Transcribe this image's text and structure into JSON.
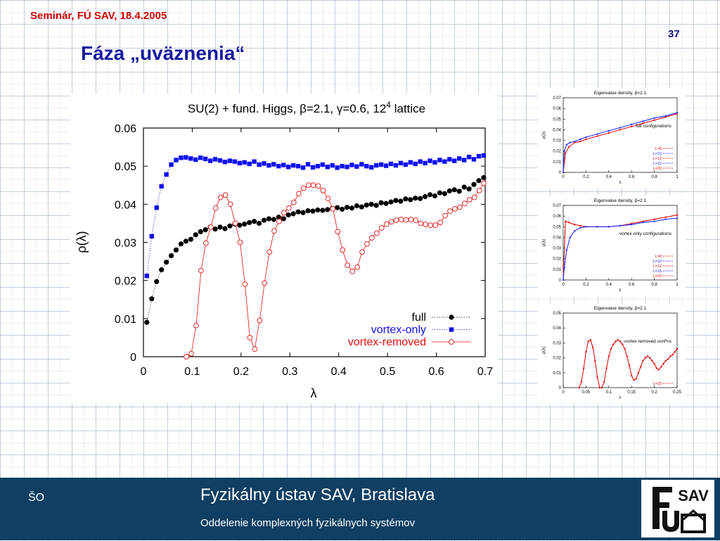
{
  "slide": {
    "header": "Seminár, FÚ SAV, 18.4.2005",
    "page_number": "37",
    "title": "Fáza „uväznenia“"
  },
  "footer": {
    "left": "ŠO",
    "institute": "Fyzikálny ústav SAV, Bratislava",
    "department": "Oddelenie komplexných fyzikálnych systémov",
    "logo_text": "SAV"
  },
  "chart_data": [
    {
      "type": "scatter",
      "title_parts": [
        "SU(2) + fund. Higgs, ",
        "β",
        "=2.1, ",
        "γ",
        "=0.6, 12",
        "4",
        " lattice"
      ],
      "xlabel": "λ",
      "ylabel": "ρ(λ)",
      "xlim": [
        0,
        0.7
      ],
      "ylim": [
        0,
        0.06
      ],
      "xticks": [
        "0",
        "0.1",
        "0.2",
        "0.3",
        "0.4",
        "0.5",
        "0.6",
        "0.7"
      ],
      "yticks": [
        "0",
        "0.01",
        "0.02",
        "0.03",
        "0.04",
        "0.05",
        "0.06"
      ],
      "legend_position": "bottom-right",
      "series": [
        {
          "name": "full",
          "color": "#000000",
          "marker": "filled-circle",
          "line": "dotted",
          "x": [
            0.007,
            0.017,
            0.027,
            0.037,
            0.047,
            0.057,
            0.067,
            0.077,
            0.087,
            0.097,
            0.107,
            0.117,
            0.127,
            0.137,
            0.147,
            0.157,
            0.167,
            0.177,
            0.187,
            0.197,
            0.207,
            0.217,
            0.227,
            0.237,
            0.247,
            0.257,
            0.267,
            0.277,
            0.287,
            0.297,
            0.307,
            0.317,
            0.327,
            0.337,
            0.347,
            0.357,
            0.367,
            0.377,
            0.387,
            0.397,
            0.407,
            0.417,
            0.427,
            0.437,
            0.447,
            0.457,
            0.467,
            0.477,
            0.487,
            0.497,
            0.507,
            0.517,
            0.527,
            0.537,
            0.547,
            0.557,
            0.567,
            0.577,
            0.587,
            0.597,
            0.607,
            0.617,
            0.627,
            0.637,
            0.647,
            0.657,
            0.667,
            0.677,
            0.687,
            0.697
          ],
          "y": [
            0.009,
            0.0152,
            0.0197,
            0.0228,
            0.0248,
            0.0265,
            0.028,
            0.0296,
            0.0303,
            0.0308,
            0.032,
            0.0328,
            0.0333,
            0.034,
            0.0335,
            0.034,
            0.0336,
            0.0343,
            0.0348,
            0.0345,
            0.0348,
            0.0352,
            0.0355,
            0.035,
            0.0358,
            0.0362,
            0.036,
            0.0366,
            0.0362,
            0.0372,
            0.0375,
            0.038,
            0.0378,
            0.0383,
            0.0382,
            0.0385,
            0.0384,
            0.0386,
            0.0389,
            0.0391,
            0.0387,
            0.0392,
            0.039,
            0.0396,
            0.0393,
            0.0398,
            0.04,
            0.0397,
            0.0404,
            0.0402,
            0.0406,
            0.041,
            0.0408,
            0.0414,
            0.0412,
            0.0416,
            0.0415,
            0.042,
            0.0425,
            0.0422,
            0.043,
            0.0428,
            0.0435,
            0.0438,
            0.0434,
            0.0445,
            0.044,
            0.0452,
            0.0462,
            0.047
          ]
        },
        {
          "name": "vortex-only",
          "color": "#1010ee",
          "marker": "filled-square",
          "line": "dotted",
          "x": [
            0.007,
            0.017,
            0.027,
            0.037,
            0.047,
            0.057,
            0.067,
            0.077,
            0.087,
            0.097,
            0.107,
            0.117,
            0.127,
            0.137,
            0.147,
            0.157,
            0.167,
            0.177,
            0.187,
            0.197,
            0.207,
            0.217,
            0.227,
            0.237,
            0.247,
            0.257,
            0.267,
            0.277,
            0.287,
            0.297,
            0.307,
            0.317,
            0.327,
            0.337,
            0.347,
            0.357,
            0.367,
            0.377,
            0.387,
            0.397,
            0.407,
            0.417,
            0.427,
            0.437,
            0.447,
            0.457,
            0.467,
            0.477,
            0.487,
            0.497,
            0.507,
            0.517,
            0.527,
            0.537,
            0.547,
            0.557,
            0.567,
            0.577,
            0.587,
            0.597,
            0.607,
            0.617,
            0.627,
            0.637,
            0.647,
            0.657,
            0.667,
            0.677,
            0.687,
            0.697
          ],
          "y": [
            0.0212,
            0.0316,
            0.0391,
            0.0447,
            0.0478,
            0.0504,
            0.0516,
            0.0522,
            0.0523,
            0.052,
            0.0517,
            0.0522,
            0.0519,
            0.0514,
            0.0518,
            0.0515,
            0.0511,
            0.0514,
            0.0512,
            0.0508,
            0.051,
            0.0506,
            0.0512,
            0.0504,
            0.0507,
            0.0502,
            0.0505,
            0.05,
            0.0503,
            0.0498,
            0.0502,
            0.05,
            0.0496,
            0.0505,
            0.0497,
            0.05,
            0.0504,
            0.0498,
            0.0502,
            0.0496,
            0.05,
            0.0498,
            0.0503,
            0.0499,
            0.0505,
            0.05,
            0.0497,
            0.0502,
            0.0504,
            0.0501,
            0.0506,
            0.0502,
            0.0508,
            0.0504,
            0.051,
            0.0506,
            0.0512,
            0.0508,
            0.0514,
            0.051,
            0.0516,
            0.0512,
            0.0518,
            0.0514,
            0.052,
            0.0516,
            0.0524,
            0.0518,
            0.0526,
            0.0528
          ]
        },
        {
          "name": "vortex-removed",
          "color": "#e01010",
          "marker": "open-circle",
          "line": "solid",
          "x": [
            0.088,
            0.098,
            0.108,
            0.118,
            0.128,
            0.138,
            0.148,
            0.158,
            0.168,
            0.178,
            0.188,
            0.198,
            0.208,
            0.218,
            0.228,
            0.238,
            0.248,
            0.258,
            0.268,
            0.278,
            0.288,
            0.298,
            0.308,
            0.318,
            0.328,
            0.338,
            0.348,
            0.358,
            0.368,
            0.378,
            0.388,
            0.398,
            0.408,
            0.418,
            0.428,
            0.438,
            0.448,
            0.458,
            0.468,
            0.478,
            0.488,
            0.498,
            0.508,
            0.518,
            0.528,
            0.538,
            0.548,
            0.558,
            0.568,
            0.578,
            0.588,
            0.598,
            0.608,
            0.618,
            0.628,
            0.638,
            0.648,
            0.658,
            0.668,
            0.678,
            0.688,
            0.697
          ],
          "y": [
            0.0,
            0.0008,
            0.0082,
            0.0226,
            0.0298,
            0.034,
            0.039,
            0.0418,
            0.0424,
            0.04,
            0.035,
            0.03,
            0.019,
            0.005,
            0.002,
            0.0095,
            0.0193,
            0.0275,
            0.033,
            0.0355,
            0.0378,
            0.039,
            0.0405,
            0.0428,
            0.0442,
            0.045,
            0.045,
            0.0448,
            0.0436,
            0.0415,
            0.0388,
            0.0328,
            0.028,
            0.024,
            0.0224,
            0.0235,
            0.0275,
            0.0296,
            0.0312,
            0.0324,
            0.0338,
            0.0348,
            0.0354,
            0.0358,
            0.036,
            0.0359,
            0.036,
            0.0358,
            0.035,
            0.0347,
            0.0345,
            0.0345,
            0.0352,
            0.037,
            0.0382,
            0.0388,
            0.0392,
            0.0402,
            0.0412,
            0.0418,
            0.0436,
            0.0455
          ]
        }
      ]
    },
    {
      "type": "scatter",
      "title": "Eigenvalue density, β=2.1",
      "xlabel": "λ",
      "ylabel": "ρ(λ)",
      "annotation": "full configurations",
      "xlim": [
        0,
        1
      ],
      "ylim": [
        0,
        0.07
      ],
      "xticks": [
        "0",
        "0.2",
        "0.4",
        "0.6",
        "0.8",
        "1"
      ],
      "yticks": [
        "0",
        "0.01",
        "0.02",
        "0.03",
        "0.04",
        "0.05",
        "0.06",
        "0.07"
      ],
      "legend_position": "bottom-right",
      "legend": [
        "L=8",
        "L=10",
        "L=12",
        "L=16",
        "L=20"
      ],
      "legend_colors": [
        "#e01010",
        "#2030ff",
        "#e01010",
        "#2030ff",
        "#e01010"
      ],
      "series": [
        {
          "name": "L=8",
          "color": "#e01010",
          "x": [
            0.0,
            0.02,
            0.05,
            0.1,
            0.15,
            0.2,
            0.3,
            0.4,
            0.5,
            0.6,
            0.7,
            0.8,
            0.9,
            1.0
          ],
          "y": [
            0.0,
            0.018,
            0.024,
            0.028,
            0.029,
            0.031,
            0.034,
            0.037,
            0.04,
            0.043,
            0.046,
            0.049,
            0.052,
            0.055
          ]
        },
        {
          "name": "L=20",
          "color": "#2030ff",
          "x": [
            0.0,
            0.01,
            0.03,
            0.06,
            0.1,
            0.15,
            0.2,
            0.3,
            0.4,
            0.5,
            0.6,
            0.7,
            0.8,
            0.9,
            1.0
          ],
          "y": [
            0.0,
            0.02,
            0.026,
            0.028,
            0.029,
            0.031,
            0.033,
            0.036,
            0.039,
            0.042,
            0.045,
            0.048,
            0.051,
            0.053,
            0.056
          ]
        }
      ]
    },
    {
      "type": "scatter",
      "title": "Eigenvalue density, β=2.1",
      "xlabel": "λ",
      "ylabel": "ρ(λ)",
      "annotation": "vortex-only configurations",
      "xlim": [
        0,
        1
      ],
      "ylim": [
        0,
        0.07
      ],
      "xticks": [
        "0",
        "0.2",
        "0.4",
        "0.6",
        "0.8",
        "1"
      ],
      "yticks": [
        "0",
        "0.01",
        "0.02",
        "0.03",
        "0.04",
        "0.05",
        "0.06",
        "0.07"
      ],
      "legend_position": "bottom-right",
      "legend": [
        "L=8",
        "L=10",
        "L=12",
        "L=16",
        "L=20"
      ],
      "legend_colors": [
        "#e01010",
        "#2030ff",
        "#e01010",
        "#2030ff",
        "#e01010"
      ],
      "series": [
        {
          "name": "L=8",
          "color": "#e01010",
          "x": [
            0.0,
            0.02,
            0.05,
            0.1,
            0.15,
            0.2,
            0.3,
            0.4,
            0.5,
            0.6,
            0.7,
            0.8,
            0.9,
            1.0
          ],
          "y": [
            0.0,
            0.055,
            0.054,
            0.052,
            0.051,
            0.05,
            0.05,
            0.05,
            0.051,
            0.053,
            0.055,
            0.057,
            0.059,
            0.061
          ]
        },
        {
          "name": "L=20",
          "color": "#2030ff",
          "x": [
            0.0,
            0.01,
            0.03,
            0.06,
            0.1,
            0.15,
            0.2,
            0.3,
            0.4,
            0.5,
            0.6,
            0.7,
            0.8,
            0.9,
            1.0
          ],
          "y": [
            0.0,
            0.012,
            0.028,
            0.04,
            0.046,
            0.049,
            0.05,
            0.05,
            0.05,
            0.051,
            0.052,
            0.054,
            0.055,
            0.057,
            0.058
          ]
        }
      ]
    },
    {
      "type": "line",
      "title": "Eigenvalue density, β=2.1",
      "xlabel": "λ",
      "ylabel": "ρ(λ)",
      "annotation": "vortex-removed conf'ns",
      "xlim": [
        0,
        0.25
      ],
      "ylim": [
        0,
        0.05
      ],
      "xticks": [
        "0",
        "0.05",
        "0.1",
        "0.15",
        "0.2",
        "0.25"
      ],
      "yticks": [
        "0",
        "0.01",
        "0.02",
        "0.03",
        "0.04",
        "0.05"
      ],
      "legend_position": "bottom-right",
      "legend": [
        "L=20"
      ],
      "legend_colors": [
        "#e01010"
      ],
      "series": [
        {
          "name": "L=20",
          "color": "#e01010",
          "x": [
            0.035,
            0.04,
            0.045,
            0.05,
            0.055,
            0.06,
            0.065,
            0.07,
            0.075,
            0.08,
            0.085,
            0.09,
            0.095,
            0.1,
            0.105,
            0.11,
            0.115,
            0.12,
            0.125,
            0.13,
            0.135,
            0.14,
            0.145,
            0.15,
            0.155,
            0.16,
            0.165,
            0.17,
            0.175,
            0.18,
            0.185,
            0.19,
            0.195,
            0.2,
            0.205,
            0.21,
            0.215,
            0.22,
            0.225,
            0.23,
            0.235,
            0.24,
            0.245,
            0.25
          ],
          "y": [
            0.0,
            0.004,
            0.013,
            0.024,
            0.031,
            0.032,
            0.027,
            0.018,
            0.007,
            0.0,
            0.0,
            0.004,
            0.013,
            0.021,
            0.026,
            0.029,
            0.031,
            0.032,
            0.031,
            0.029,
            0.026,
            0.021,
            0.015,
            0.008,
            0.005,
            0.006,
            0.01,
            0.014,
            0.018,
            0.02,
            0.021,
            0.02,
            0.018,
            0.016,
            0.013,
            0.012,
            0.014,
            0.016,
            0.018,
            0.019,
            0.021,
            0.022,
            0.024,
            0.026
          ]
        }
      ]
    }
  ]
}
